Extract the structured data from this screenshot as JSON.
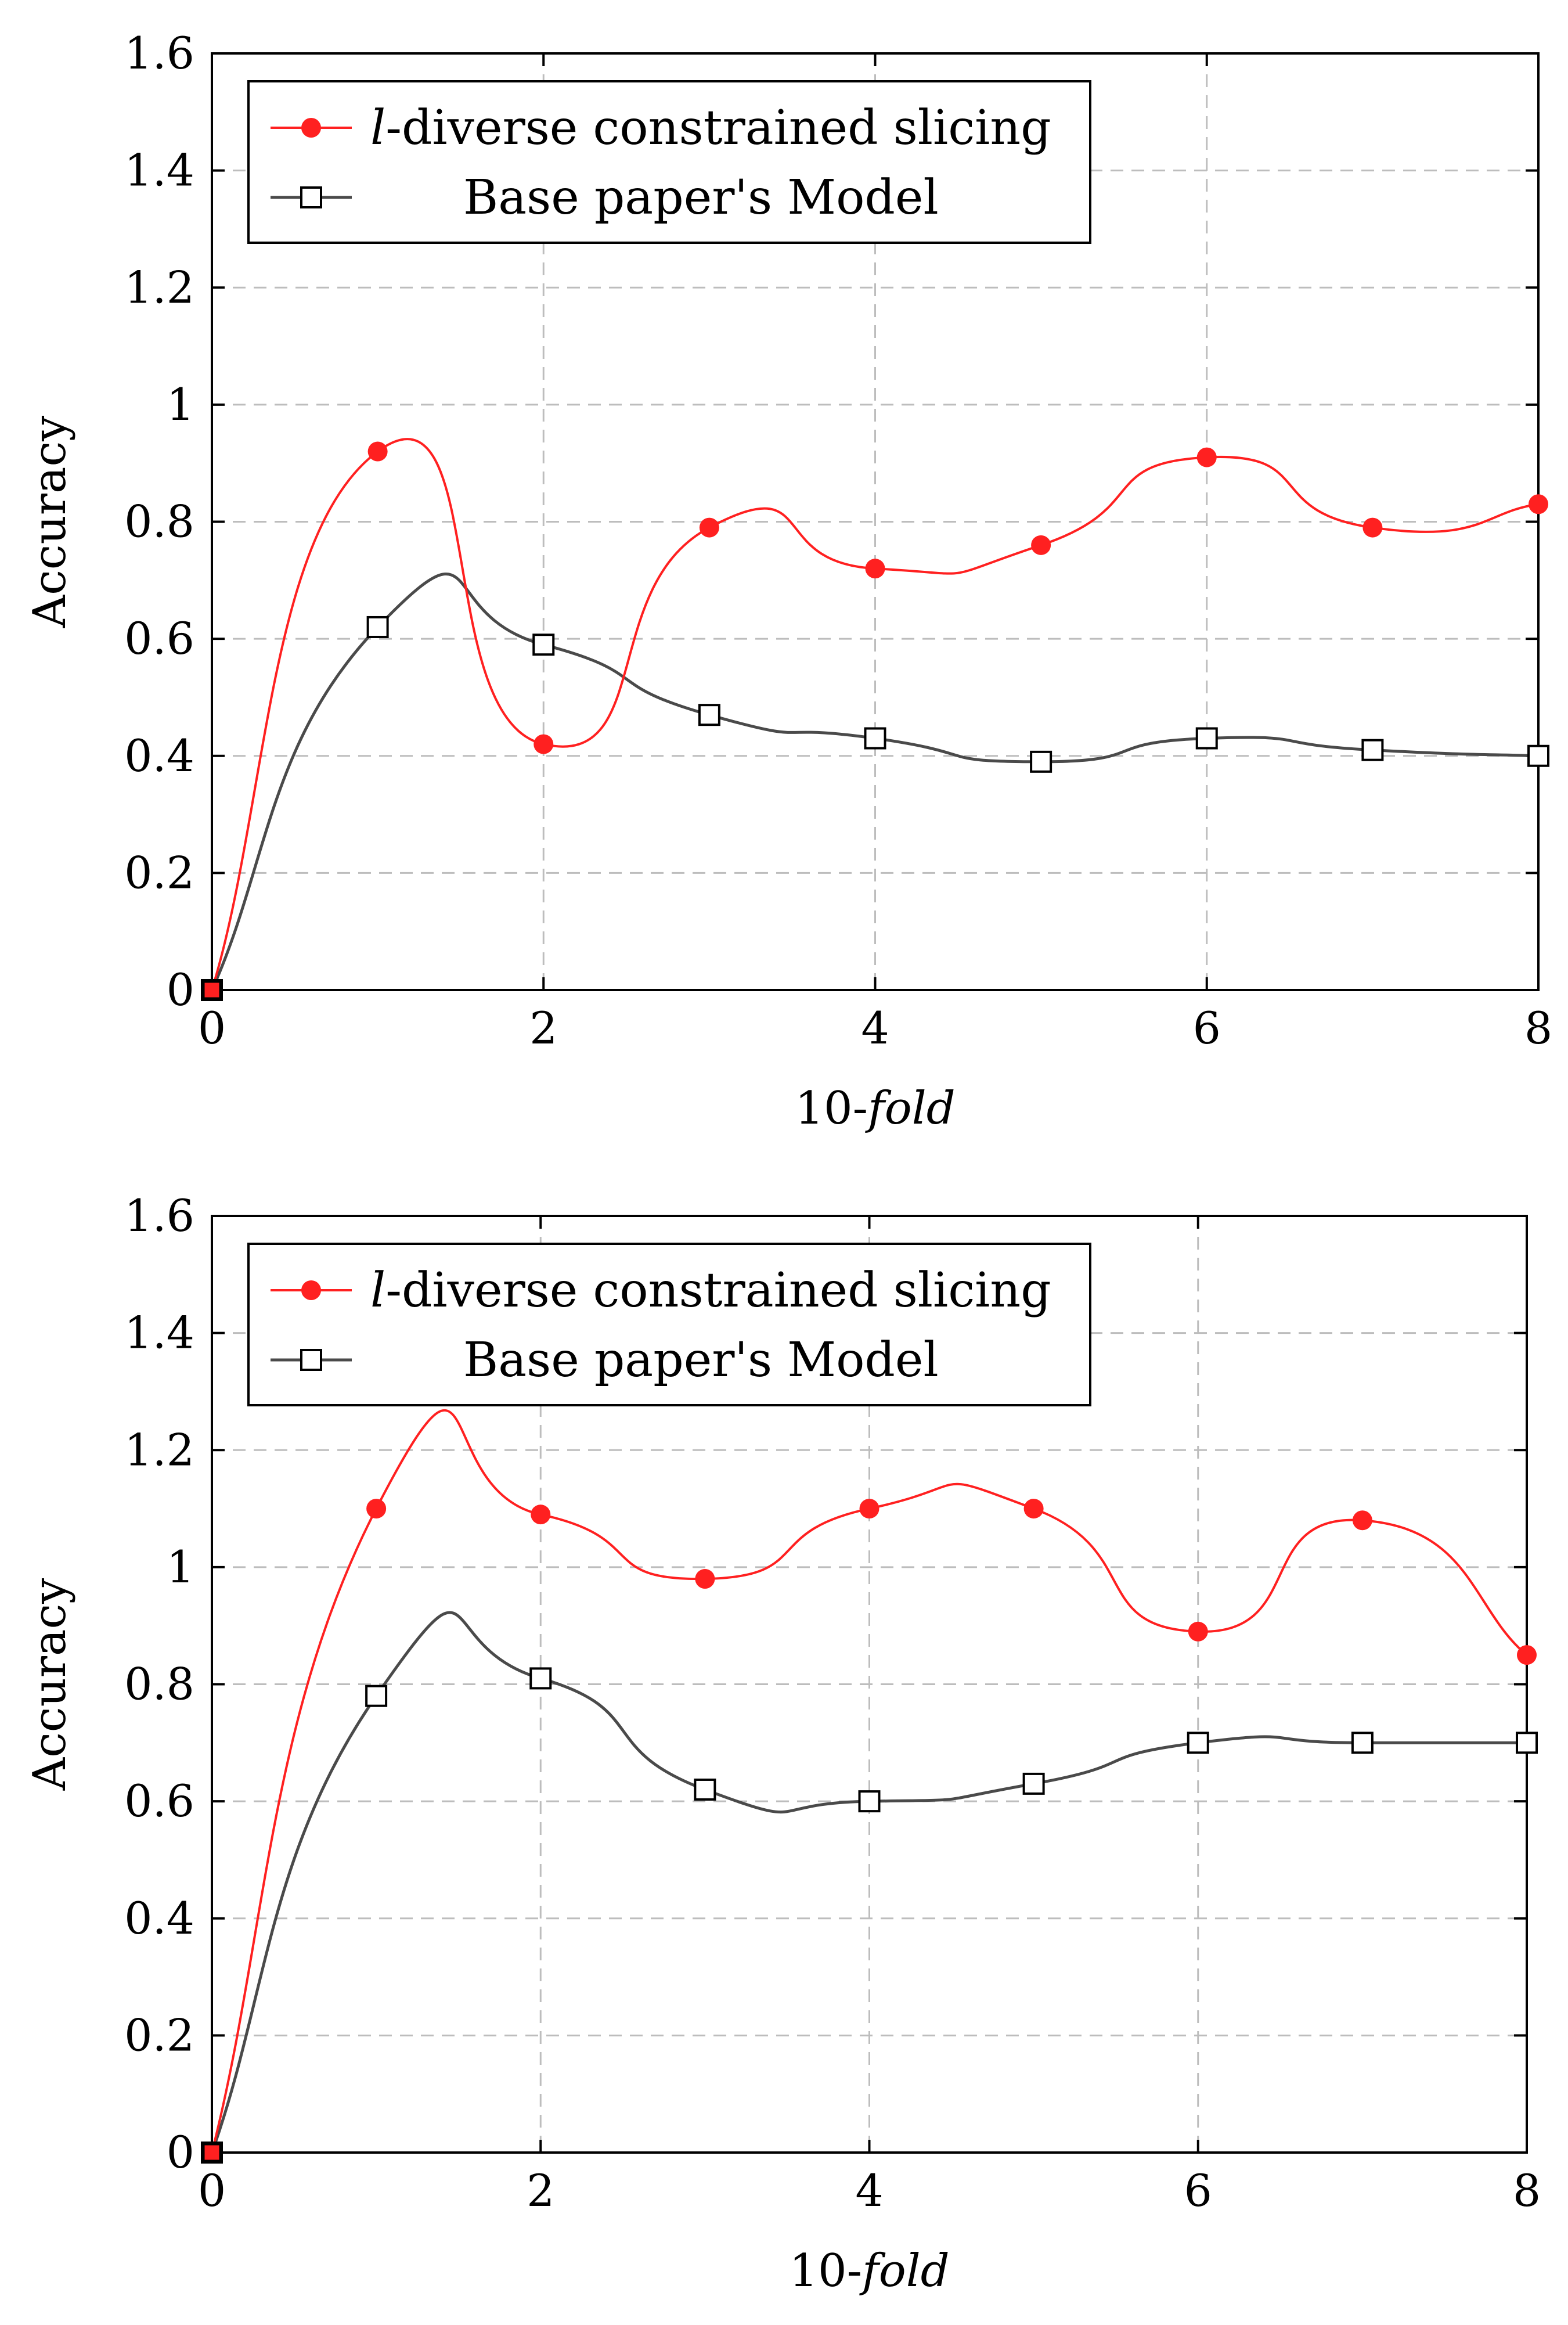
{
  "chart_data": [
    {
      "type": "line",
      "title": "",
      "xlabel": "10-fold",
      "ylabel": "Accuracy",
      "xlim": [
        0,
        8
      ],
      "ylim": [
        0,
        1.6
      ],
      "xticks": [
        0,
        2,
        4,
        6,
        8
      ],
      "yticks": [
        0,
        0.2,
        0.4,
        0.6,
        0.8,
        1,
        1.2,
        1.4,
        1.6
      ],
      "ytick_labels": [
        "0",
        "0.2",
        "0.4",
        "0.6",
        "0.8",
        "1",
        "1.2",
        "1.4",
        "1.6"
      ],
      "grid": true,
      "legend_position": "top-left",
      "x": [
        0,
        1,
        2,
        3,
        4,
        5,
        6,
        7,
        8
      ],
      "series": [
        {
          "name": "l-diverse constrained slicing",
          "legend_prefix": "l",
          "legend_suffix": "-diverse constrained slicing",
          "color": "#ff2020",
          "marker": "filled-circle",
          "values": [
            0,
            0.92,
            0.42,
            0.79,
            0.72,
            0.76,
            0.91,
            0.79,
            0.83
          ]
        },
        {
          "name": "Base paper's Model",
          "color": "#4a4a4a",
          "marker": "open-square",
          "values": [
            0,
            0.62,
            0.59,
            0.47,
            0.43,
            0.39,
            0.43,
            0.41,
            0.4
          ]
        }
      ]
    },
    {
      "type": "line",
      "title": "",
      "xlabel": "10-fold",
      "ylabel": "Accuracy",
      "xlim": [
        0,
        8
      ],
      "ylim": [
        0,
        1.6
      ],
      "xticks": [
        0,
        2,
        4,
        6,
        8
      ],
      "yticks": [
        0,
        0.2,
        0.4,
        0.6,
        0.8,
        1,
        1.2,
        1.4,
        1.6
      ],
      "ytick_labels": [
        "0",
        "0.2",
        "0.4",
        "0.6",
        "0.8",
        "1",
        "1.2",
        "1.4",
        "1.6"
      ],
      "grid": true,
      "legend_position": "top-left",
      "x": [
        0,
        1,
        2,
        3,
        4,
        5,
        6,
        7,
        8
      ],
      "series": [
        {
          "name": "l-diverse constrained slicing",
          "legend_prefix": "l",
          "legend_suffix": "-diverse constrained slicing",
          "color": "#ff2020",
          "marker": "filled-circle",
          "values": [
            0,
            1.1,
            1.09,
            0.98,
            1.1,
            1.1,
            0.89,
            1.08,
            0.85
          ]
        },
        {
          "name": "Base paper's Model",
          "color": "#4a4a4a",
          "marker": "open-square",
          "values": [
            0,
            0.78,
            0.81,
            0.62,
            0.6,
            0.63,
            0.7,
            0.7,
            0.7
          ]
        }
      ]
    }
  ]
}
